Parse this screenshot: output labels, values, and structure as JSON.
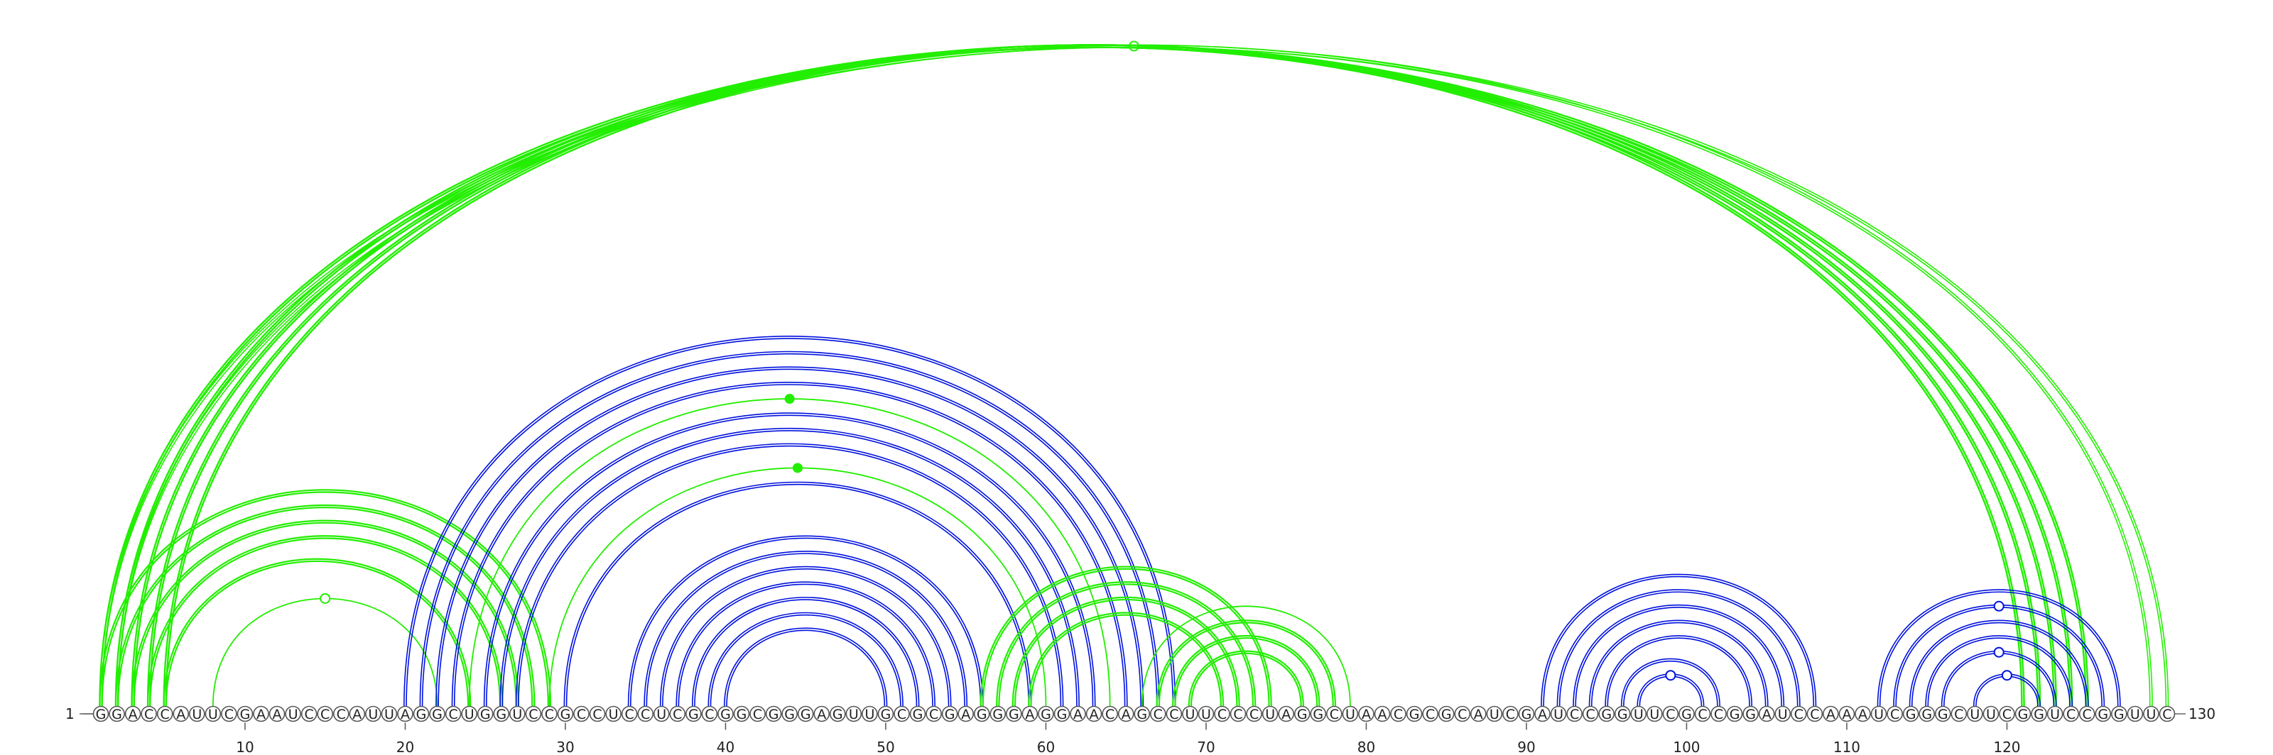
{
  "sequence": "GGACCAUUCGAAUCCCAUUAGGCUGGUCCGCCUCCUCGCGGCGGGAGUUGCGCGAGGGAGGAACAGCCUUCCCUAGGCUAACGCGCAUCGAUCCGGUUCGCCGGAUCCAAAUCGGGCUUCGGUCCGGUUC",
  "start_label": "1",
  "end_label": "130",
  "tick_labels": [
    "10",
    "20",
    "30",
    "40",
    "50",
    "60",
    "70",
    "80",
    "90",
    "100",
    "110",
    "120"
  ],
  "colors": {
    "green": "#22ee00",
    "blue": "#0011dd",
    "backbone": "#666666"
  },
  "arcs": [
    {
      "i": 1,
      "j": 130,
      "color": "green",
      "width": 1.6,
      "double": true,
      "marker": "open-green"
    },
    {
      "i": 2,
      "j": 129,
      "color": "green",
      "width": 1.6,
      "double": true
    },
    {
      "i": 1,
      "j": 125,
      "color": "green",
      "width": 2.4,
      "double": true
    },
    {
      "i": 2,
      "j": 124,
      "color": "green",
      "width": 2.4,
      "double": true
    },
    {
      "i": 3,
      "j": 123,
      "color": "green",
      "width": 2.4,
      "double": true
    },
    {
      "i": 4,
      "j": 122,
      "color": "green",
      "width": 2.4,
      "double": true
    },
    {
      "i": 5,
      "j": 121,
      "color": "green",
      "width": 2.4,
      "double": true
    },
    {
      "i": 1,
      "j": 29,
      "color": "green",
      "width": 2.2,
      "double": true
    },
    {
      "i": 2,
      "j": 28,
      "color": "green",
      "width": 2.2,
      "double": true
    },
    {
      "i": 3,
      "j": 27,
      "color": "green",
      "width": 2.2,
      "double": true
    },
    {
      "i": 4,
      "j": 26,
      "color": "green",
      "width": 2.2,
      "double": true
    },
    {
      "i": 5,
      "j": 24,
      "color": "green",
      "width": 2.2,
      "double": true
    },
    {
      "i": 8,
      "j": 22,
      "color": "green",
      "width": 1.8,
      "double": false,
      "marker": "open-green"
    },
    {
      "i": 20,
      "j": 68,
      "color": "blue",
      "width": 1.6,
      "double": true
    },
    {
      "i": 21,
      "j": 67,
      "color": "blue",
      "width": 1.6,
      "double": true
    },
    {
      "i": 22,
      "j": 66,
      "color": "blue",
      "width": 1.6,
      "double": true
    },
    {
      "i": 23,
      "j": 65,
      "color": "blue",
      "width": 1.6,
      "double": true
    },
    {
      "i": 24,
      "j": 64,
      "color": "green",
      "width": 1.8,
      "double": false,
      "marker": "filled-green"
    },
    {
      "i": 25,
      "j": 63,
      "color": "blue",
      "width": 1.6,
      "double": true
    },
    {
      "i": 26,
      "j": 62,
      "color": "blue",
      "width": 1.6,
      "double": true
    },
    {
      "i": 27,
      "j": 61,
      "color": "blue",
      "width": 1.6,
      "double": true
    },
    {
      "i": 29,
      "j": 60,
      "color": "green",
      "width": 1.8,
      "double": false,
      "marker": "filled-green"
    },
    {
      "i": 30,
      "j": 59,
      "color": "blue",
      "width": 1.6,
      "double": true
    },
    {
      "i": 34,
      "j": 56,
      "color": "blue",
      "width": 1.6,
      "double": true
    },
    {
      "i": 35,
      "j": 55,
      "color": "blue",
      "width": 1.6,
      "double": true
    },
    {
      "i": 36,
      "j": 54,
      "color": "blue",
      "width": 1.6,
      "double": true
    },
    {
      "i": 37,
      "j": 53,
      "color": "blue",
      "width": 1.6,
      "double": true
    },
    {
      "i": 38,
      "j": 52,
      "color": "blue",
      "width": 1.6,
      "double": true
    },
    {
      "i": 39,
      "j": 51,
      "color": "blue",
      "width": 1.6,
      "double": true
    },
    {
      "i": 40,
      "j": 50,
      "color": "blue",
      "width": 1.6,
      "double": true
    },
    {
      "i": 56,
      "j": 74,
      "color": "green",
      "width": 2.2,
      "double": true
    },
    {
      "i": 57,
      "j": 73,
      "color": "green",
      "width": 2.2,
      "double": true
    },
    {
      "i": 58,
      "j": 72,
      "color": "green",
      "width": 2.2,
      "double": true
    },
    {
      "i": 59,
      "j": 71,
      "color": "green",
      "width": 2.2,
      "double": true
    },
    {
      "i": 66,
      "j": 79,
      "color": "green",
      "width": 1.8,
      "double": false
    },
    {
      "i": 67,
      "j": 78,
      "color": "green",
      "width": 2.2,
      "double": true
    },
    {
      "i": 68,
      "j": 77,
      "color": "green",
      "width": 2.2,
      "double": true
    },
    {
      "i": 69,
      "j": 76,
      "color": "green",
      "width": 2.2,
      "double": true
    },
    {
      "i": 91,
      "j": 108,
      "color": "blue",
      "width": 1.6,
      "double": true
    },
    {
      "i": 92,
      "j": 107,
      "color": "blue",
      "width": 1.6,
      "double": true
    },
    {
      "i": 93,
      "j": 106,
      "color": "blue",
      "width": 1.6,
      "double": true
    },
    {
      "i": 94,
      "j": 105,
      "color": "blue",
      "width": 1.6,
      "double": true
    },
    {
      "i": 95,
      "j": 104,
      "color": "blue",
      "width": 1.6,
      "double": true
    },
    {
      "i": 96,
      "j": 102,
      "color": "blue",
      "width": 1.6,
      "double": true
    },
    {
      "i": 97,
      "j": 101,
      "color": "blue",
      "width": 1.6,
      "double": true,
      "marker": "open-blue"
    },
    {
      "i": 112,
      "j": 127,
      "color": "blue",
      "width": 1.6,
      "double": true
    },
    {
      "i": 113,
      "j": 126,
      "color": "blue",
      "width": 1.6,
      "double": true,
      "marker": "open-blue"
    },
    {
      "i": 114,
      "j": 125,
      "color": "blue",
      "width": 1.6,
      "double": true
    },
    {
      "i": 115,
      "j": 124,
      "color": "blue",
      "width": 1.6,
      "double": true
    },
    {
      "i": 116,
      "j": 123,
      "color": "blue",
      "width": 1.6,
      "double": true,
      "marker": "open-blue"
    },
    {
      "i": 118,
      "j": 122,
      "color": "blue",
      "width": 1.6,
      "double": true,
      "marker": "open-blue"
    }
  ]
}
